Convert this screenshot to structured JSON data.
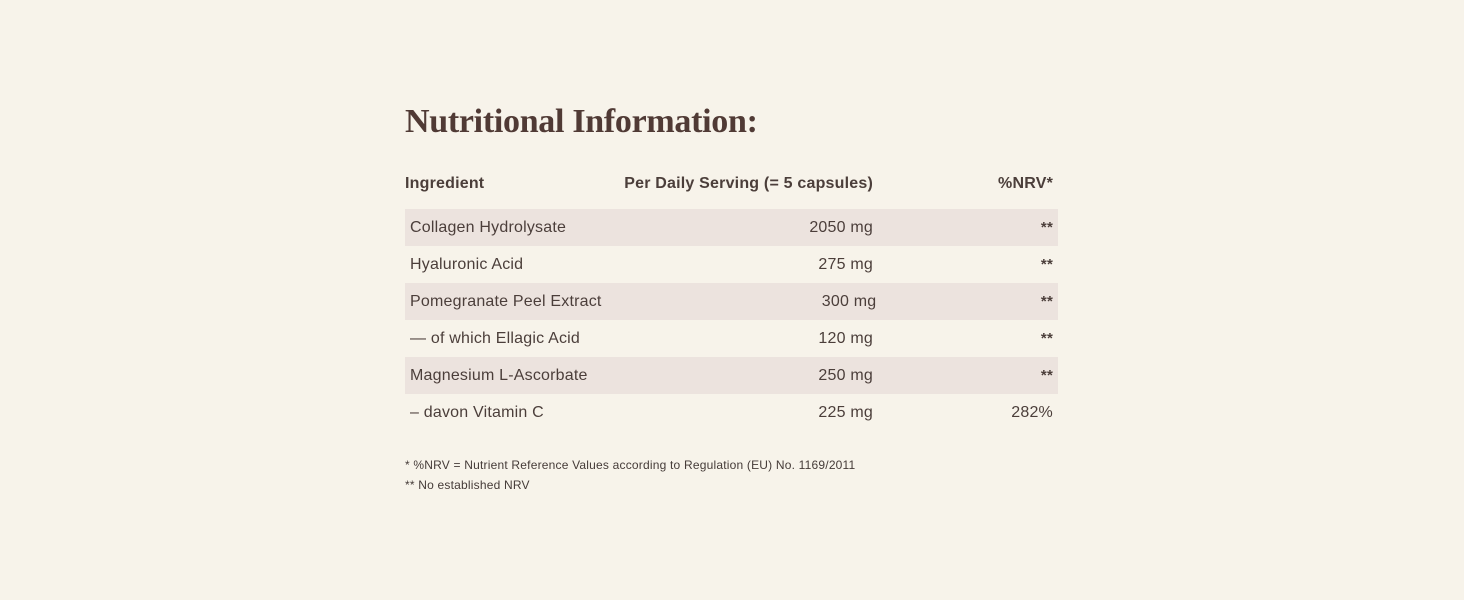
{
  "colors": {
    "background": "#f7f3ea",
    "row_shade": "#ece3de",
    "text": "#4b3e3a",
    "title": "#503a35"
  },
  "title": "Nutritional Information:",
  "table": {
    "header": {
      "ingredient": "Ingredient",
      "serving": "Per Daily Serving (= 5 capsules)",
      "nrv": "%NRV*"
    },
    "rows": [
      {
        "ingredient": "Collagen Hydrolysate",
        "serving": "2050 mg",
        "nrv": "**"
      },
      {
        "ingredient": "Hyaluronic Acid",
        "serving": "275 mg",
        "nrv": "**"
      },
      {
        "ingredient": "Pomegranate Peel Extract",
        "serving": "300 mg",
        "nrv": "**"
      },
      {
        "ingredient": "— of which Ellagic Acid",
        "serving": "120 mg",
        "nrv": "**"
      },
      {
        "ingredient": "Magnesium L-Ascorbate",
        "serving": "250 mg",
        "nrv": "**"
      },
      {
        "ingredient": "– davon Vitamin C",
        "serving": "225 mg",
        "nrv": "282%"
      }
    ]
  },
  "footnotes": {
    "nrv_definition": "* %NRV = Nutrient Reference Values according to Regulation (EU) No. 1169/2011",
    "no_established_nrv": "** No established NRV"
  }
}
